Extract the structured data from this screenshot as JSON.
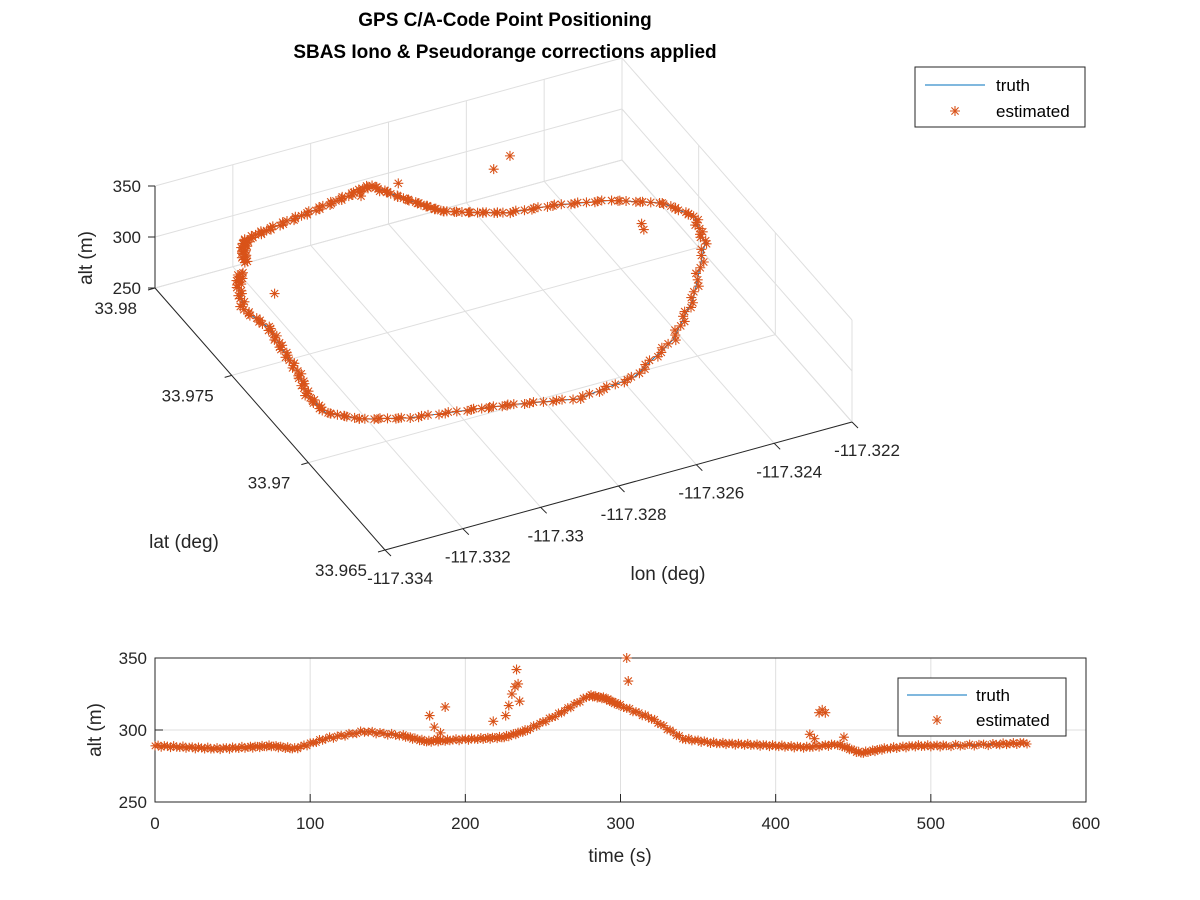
{
  "colors": {
    "truth": "#0072BD",
    "estimated": "#D95319",
    "grid": "#DFDFDF",
    "axis": "#262626"
  },
  "chart_data": [
    {
      "type": "line",
      "projection": "3d",
      "title": [
        "GPS C/A-Code Point Positioning",
        "SBAS Iono & Pseudorange corrections applied"
      ],
      "xlabel": "lon (deg)",
      "ylabel": "lat (deg)",
      "zlabel": "alt (m)",
      "xlim": [
        -117.334,
        -117.322
      ],
      "ylim": [
        33.965,
        33.98
      ],
      "zlim": [
        250,
        350
      ],
      "xticks": [
        -117.334,
        -117.332,
        -117.33,
        -117.328,
        -117.326,
        -117.324,
        -117.322
      ],
      "xtick_labels": [
        "-117.334",
        "-117.332",
        "-117.33",
        "-117.328",
        "-117.326",
        "-117.324",
        "-117.322"
      ],
      "yticks": [
        33.965,
        33.97,
        33.975,
        33.98
      ],
      "ytick_labels": [
        "33.965",
        "33.97",
        "33.975",
        "33.98"
      ],
      "zticks": [
        250,
        300,
        350
      ],
      "ztick_labels": [
        "250",
        "300",
        "350"
      ],
      "grid": true,
      "legend": {
        "position": "top-right",
        "entries": [
          "truth",
          "estimated"
        ]
      },
      "series": [
        {
          "name": "truth",
          "style": "line",
          "points": [
            [
              -117.3324,
              33.9782,
              289
            ],
            [
              -117.3322,
              33.9788,
              290
            ],
            [
              -117.332,
              33.9791,
              292
            ],
            [
              -117.3314,
              33.9792,
              294
            ],
            [
              -117.3306,
              33.9793,
              296
            ],
            [
              -117.3298,
              33.9794,
              298
            ],
            [
              -117.3291,
              33.9795,
              300
            ],
            [
              -117.3286,
              33.9796,
              301
            ],
            [
              -117.3282,
              33.9789,
              298
            ],
            [
              -117.3278,
              33.9783,
              296
            ],
            [
              -117.3275,
              33.9778,
              295
            ],
            [
              -117.3269,
              33.9773,
              296
            ],
            [
              -117.3262,
              33.9768,
              297
            ],
            [
              -117.3251,
              33.9764,
              300
            ],
            [
              -117.324,
              33.9757,
              305
            ],
            [
              -117.3232,
              33.9743,
              318
            ],
            [
              -117.3229,
              33.973,
              324
            ],
            [
              -117.3231,
              33.9718,
              320
            ],
            [
              -117.3241,
              33.97,
              308
            ],
            [
              -117.3251,
              33.9688,
              298
            ],
            [
              -117.3265,
              33.9678,
              293
            ],
            [
              -117.328,
              33.9676,
              291
            ],
            [
              -117.3294,
              33.9682,
              290
            ],
            [
              -117.3304,
              33.9685,
              290
            ],
            [
              -117.3318,
              33.969,
              288
            ],
            [
              -117.3328,
              33.9696,
              287
            ],
            [
              -117.3334,
              33.9704,
              286
            ],
            [
              -117.3335,
              33.9713,
              288
            ],
            [
              -117.3333,
              33.9724,
              289
            ],
            [
              -117.3332,
              33.9737,
              289
            ],
            [
              -117.3331,
              33.9748,
              290
            ],
            [
              -117.3333,
              33.976,
              290
            ],
            [
              -117.333,
              33.9771,
              292
            ],
            [
              -117.3327,
              33.9777,
              291
            ]
          ]
        },
        {
          "name": "estimated",
          "style": "marker-asterisk",
          "note_outliers": true,
          "outliers": [
            [
              -117.3291,
              33.979,
              306
            ],
            [
              -117.3287,
              33.9788,
              310
            ],
            [
              -117.3283,
              33.9786,
              317
            ],
            [
              -117.3264,
              33.9772,
              335
            ],
            [
              -117.3261,
              33.9769,
              350
            ],
            [
              -117.3239,
              33.9739,
              312
            ],
            [
              -117.324,
              33.9735,
              314
            ],
            [
              -117.3327,
              33.9755,
              308
            ]
          ]
        }
      ]
    },
    {
      "type": "line",
      "title": "",
      "xlabel": "time (s)",
      "ylabel": "alt (m)",
      "xlim": [
        0,
        600
      ],
      "ylim": [
        250,
        350
      ],
      "xticks": [
        0,
        100,
        200,
        300,
        400,
        500,
        600
      ],
      "xtick_labels": [
        "0",
        "100",
        "200",
        "300",
        "400",
        "500",
        "600"
      ],
      "yticks": [
        250,
        300,
        350
      ],
      "ytick_labels": [
        "250",
        "300",
        "350"
      ],
      "grid": true,
      "legend": {
        "position": "top-right",
        "entries": [
          "truth",
          "estimated"
        ]
      },
      "series": [
        {
          "name": "truth",
          "style": "line",
          "x": [
            0,
            20,
            40,
            60,
            75,
            90,
            110,
            135,
            160,
            175,
            190,
            210,
            225,
            240,
            260,
            280,
            290,
            300,
            320,
            340,
            360,
            380,
            400,
            420,
            440,
            455,
            470,
            490,
            510,
            540,
            562
          ],
          "y": [
            289,
            288,
            287,
            288,
            289,
            287,
            294,
            299,
            296,
            292,
            293,
            294,
            295,
            300,
            311,
            324,
            322,
            317,
            308,
            294,
            291,
            290,
            289,
            288,
            290,
            284,
            287,
            289,
            289,
            290,
            291
          ]
        },
        {
          "name": "estimated",
          "style": "marker-asterisk",
          "x": [
            0,
            20,
            40,
            60,
            75,
            90,
            110,
            135,
            160,
            175,
            190,
            210,
            225,
            240,
            260,
            280,
            290,
            300,
            320,
            340,
            360,
            380,
            400,
            420,
            440,
            455,
            470,
            490,
            510,
            540,
            562
          ],
          "y": [
            289,
            288,
            287,
            288,
            289,
            287,
            294,
            299,
            296,
            292,
            293,
            294,
            295,
            300,
            311,
            324,
            322,
            317,
            308,
            294,
            291,
            290,
            289,
            288,
            290,
            284,
            287,
            289,
            289,
            290,
            291
          ],
          "outliers_x": [
            177,
            180,
            182,
            184,
            187,
            218,
            226,
            228,
            230,
            232,
            233,
            234,
            235,
            304,
            305,
            422,
            425,
            428,
            430,
            432,
            444
          ],
          "outliers_y": [
            310,
            302,
            294,
            298,
            316,
            306,
            310,
            317,
            325,
            330,
            342,
            332,
            320,
            350,
            334,
            297,
            294,
            312,
            314,
            312,
            295
          ]
        }
      ]
    }
  ]
}
